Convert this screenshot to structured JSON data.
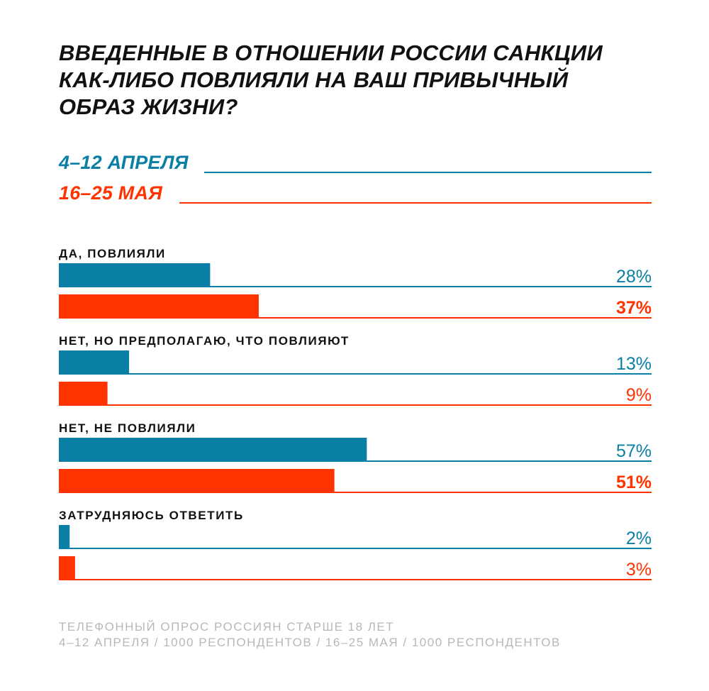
{
  "chart_data": {
    "type": "bar",
    "title": "ВВЕДЕННЫЕ В ОТНОШЕНИИ РОССИИ САНКЦИИ КАК-ЛИБО ПОВЛИЯЛИ НА ВАШ ПРИВЫЧНЫЙ ОБРАЗ ЖИЗНИ?",
    "categories": [
      "ДА, ПОВЛИЯЛИ",
      "НЕТ, НО ПРЕДПОЛАГАЮ, ЧТО ПОВЛИЯЮТ",
      "НЕТ, НЕ ПОВЛИЯЛИ",
      "ЗАТРУДНЯЮСЬ ОТВЕТИТЬ"
    ],
    "series": [
      {
        "name": "4–12 АПРЕЛЯ",
        "color": "#0a7fa5",
        "values": [
          28,
          13,
          57,
          2
        ],
        "labels": [
          "28%",
          "13%",
          "57%",
          "2%"
        ]
      },
      {
        "name": "16–25 МАЯ",
        "color": "#ff3300",
        "values": [
          37,
          9,
          51,
          3
        ],
        "labels": [
          "37%",
          "9%",
          "51%",
          "3%"
        ]
      }
    ],
    "bold_labels": [
      [
        false,
        false,
        false,
        false
      ],
      [
        true,
        false,
        true,
        false
      ]
    ],
    "xlim": [
      0,
      100
    ],
    "legend_position": "top-left",
    "orientation": "horizontal"
  },
  "footer": {
    "line1": "ТЕЛЕФОННЫЙ ОПРОС РОССИЯН СТАРШЕ 18 ЛЕТ",
    "line2": "4–12 АПРЕЛЯ / 1000  РЕСПОНДЕНТОВ / 16–25 МАЯ / 1000  РЕСПОНДЕНТОВ"
  }
}
